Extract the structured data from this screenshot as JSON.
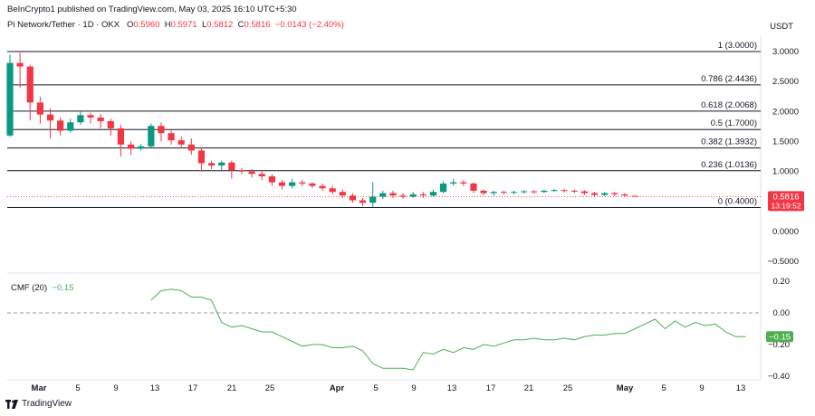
{
  "header": {
    "published": "BeInCrypto1 published on TradingView.com, May 03, 2025 16:10 UTC+5:30",
    "symbol": "Pi Network/Tether · 1D · OKX",
    "o_label": "O",
    "o_value": "0.5960",
    "h_label": "H",
    "h_value": "0.5971",
    "l_label": "L",
    "l_value": "0.5812",
    "c_label": "C",
    "c_value": "0.5816",
    "change": "−0.0143 (−2.40%)",
    "currency": "USDT"
  },
  "colors": {
    "up": "#089981",
    "down": "#f23645",
    "cmf_line": "#4caf50",
    "fib_line": "#131722",
    "price_badge": "#f23645",
    "cmf_badge": "#4caf50"
  },
  "price_badge": {
    "price": "0.5816",
    "countdown": "13:19:52"
  },
  "cmf": {
    "legend_name": "CMF (20)",
    "legend_value": "−0.15",
    "badge": "−0.15"
  },
  "footer": {
    "brand": "TradingView",
    "logo_icon": "tradingview-logo-icon"
  },
  "chart_data": [
    {
      "type": "candlestick",
      "ylim": [
        -0.7,
        3.1
      ],
      "y_ticks": [
        "3.0000",
        "2.5000",
        "2.0000",
        "1.5000",
        "1.0000",
        "0.0000",
        "−0.5000"
      ],
      "x_ticks": [
        "Mar",
        "5",
        "9",
        "13",
        "17",
        "21",
        "25",
        "Apr",
        "5",
        "9",
        "13",
        "17",
        "21",
        "25",
        "May",
        "5",
        "9",
        "13"
      ],
      "fib_levels": [
        {
          "label": "1 (3.0000)",
          "value": 3.0
        },
        {
          "label": "0.786 (2.4436)",
          "value": 2.4436
        },
        {
          "label": "0.618 (2.0068)",
          "value": 2.0068
        },
        {
          "label": "0.5 (1.7000)",
          "value": 1.7
        },
        {
          "label": "0.382 (1.3932)",
          "value": 1.3932
        },
        {
          "label": "0.236 (1.0136)",
          "value": 1.0136
        },
        {
          "label": "0 (0.4000)",
          "value": 0.4
        }
      ],
      "candles": [
        [
          1.6,
          2.81,
          2.95,
          1.58
        ],
        [
          2.81,
          2.75,
          2.98,
          2.4
        ],
        [
          2.75,
          2.15,
          2.78,
          1.85
        ],
        [
          2.15,
          1.95,
          2.25,
          1.8
        ],
        [
          1.95,
          1.85,
          2.05,
          1.55
        ],
        [
          1.85,
          1.68,
          1.9,
          1.6
        ],
        [
          1.68,
          1.82,
          1.88,
          1.65
        ],
        [
          1.82,
          1.94,
          2.02,
          1.78
        ],
        [
          1.94,
          1.9,
          1.98,
          1.8
        ],
        [
          1.9,
          1.84,
          1.96,
          1.72
        ],
        [
          1.84,
          1.72,
          1.88,
          1.6
        ],
        [
          1.72,
          1.45,
          1.78,
          1.25
        ],
        [
          1.45,
          1.38,
          1.5,
          1.28
        ],
        [
          1.38,
          1.42,
          1.46,
          1.35
        ],
        [
          1.42,
          1.76,
          1.8,
          1.4
        ],
        [
          1.76,
          1.64,
          1.82,
          1.5
        ],
        [
          1.64,
          1.52,
          1.7,
          1.45
        ],
        [
          1.52,
          1.45,
          1.58,
          1.38
        ],
        [
          1.45,
          1.35,
          1.55,
          1.28
        ],
        [
          1.35,
          1.14,
          1.4,
          1.0
        ],
        [
          1.14,
          1.1,
          1.18,
          1.04
        ],
        [
          1.1,
          1.15,
          1.18,
          1.02
        ],
        [
          1.15,
          1.02,
          1.18,
          0.88
        ],
        [
          1.02,
          1.0,
          1.06,
          0.96
        ],
        [
          1.0,
          0.96,
          1.04,
          0.9
        ],
        [
          0.96,
          0.92,
          1.0,
          0.86
        ],
        [
          0.92,
          0.82,
          0.96,
          0.76
        ],
        [
          0.82,
          0.76,
          0.86,
          0.7
        ],
        [
          0.76,
          0.82,
          0.88,
          0.72
        ],
        [
          0.82,
          0.8,
          0.86,
          0.76
        ],
        [
          0.8,
          0.76,
          0.82,
          0.72
        ],
        [
          0.76,
          0.72,
          0.8,
          0.68
        ],
        [
          0.72,
          0.66,
          0.76,
          0.62
        ],
        [
          0.66,
          0.6,
          0.7,
          0.56
        ],
        [
          0.6,
          0.52,
          0.64,
          0.48
        ],
        [
          0.52,
          0.48,
          0.56,
          0.42
        ],
        [
          0.48,
          0.58,
          0.82,
          0.4
        ],
        [
          0.58,
          0.64,
          0.68,
          0.54
        ],
        [
          0.64,
          0.6,
          0.68,
          0.56
        ],
        [
          0.6,
          0.58,
          0.64,
          0.54
        ],
        [
          0.58,
          0.62,
          0.66,
          0.56
        ],
        [
          0.62,
          0.6,
          0.66,
          0.56
        ],
        [
          0.6,
          0.66,
          0.7,
          0.58
        ],
        [
          0.66,
          0.8,
          0.84,
          0.64
        ],
        [
          0.8,
          0.82,
          0.88,
          0.76
        ],
        [
          0.82,
          0.8,
          0.86,
          0.76
        ],
        [
          0.8,
          0.68,
          0.82,
          0.64
        ],
        [
          0.68,
          0.64,
          0.7,
          0.6
        ],
        [
          0.64,
          0.66,
          0.68,
          0.6
        ],
        [
          0.66,
          0.65,
          0.68,
          0.62
        ],
        [
          0.65,
          0.66,
          0.68,
          0.62
        ],
        [
          0.66,
          0.67,
          0.69,
          0.63
        ],
        [
          0.67,
          0.66,
          0.69,
          0.63
        ],
        [
          0.66,
          0.68,
          0.7,
          0.64
        ],
        [
          0.68,
          0.69,
          0.71,
          0.66
        ],
        [
          0.69,
          0.68,
          0.71,
          0.65
        ],
        [
          0.68,
          0.67,
          0.7,
          0.64
        ],
        [
          0.67,
          0.64,
          0.69,
          0.61
        ],
        [
          0.64,
          0.61,
          0.66,
          0.58
        ],
        [
          0.61,
          0.64,
          0.66,
          0.59
        ],
        [
          0.64,
          0.62,
          0.66,
          0.59
        ],
        [
          0.62,
          0.6,
          0.64,
          0.58
        ],
        [
          0.596,
          0.5816,
          0.5971,
          0.5812
        ]
      ],
      "candle_format": [
        "open",
        "close",
        "high",
        "low"
      ]
    },
    {
      "type": "line",
      "ylim": [
        -0.42,
        0.2
      ],
      "y_ticks": [
        "0.20",
        "0.00",
        "−0.20",
        "−0.40"
      ],
      "zero_line": 0.0,
      "series": [
        {
          "values": [
            0.08,
            0.14,
            0.15,
            0.14,
            0.1,
            0.1,
            0.08,
            -0.06,
            -0.09,
            -0.08,
            -0.1,
            -0.12,
            -0.12,
            -0.15,
            -0.18,
            -0.21,
            -0.2,
            -0.2,
            -0.22,
            -0.22,
            -0.21,
            -0.24,
            -0.32,
            -0.35,
            -0.35,
            -0.35,
            -0.36,
            -0.25,
            -0.26,
            -0.23,
            -0.25,
            -0.22,
            -0.23,
            -0.2,
            -0.21,
            -0.19,
            -0.17,
            -0.17,
            -0.16,
            -0.17,
            -0.17,
            -0.16,
            -0.17,
            -0.15,
            -0.14,
            -0.14,
            -0.13,
            -0.13,
            -0.1,
            -0.07,
            -0.04,
            -0.1,
            -0.05,
            -0.09,
            -0.06,
            -0.08,
            -0.07,
            -0.12,
            -0.15,
            -0.15
          ]
        }
      ],
      "start_index": 14
    }
  ]
}
